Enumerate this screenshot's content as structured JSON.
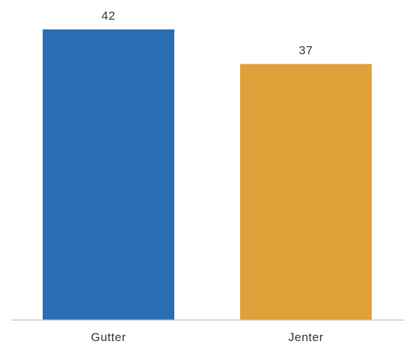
{
  "chart_data": {
    "type": "bar",
    "categories": [
      "Gutter",
      "Jenter"
    ],
    "values": [
      42,
      37
    ],
    "value_labels": [
      "42",
      "37"
    ],
    "colors": [
      "#2B6DB5",
      "#E0A039"
    ],
    "title": "",
    "xlabel": "",
    "ylabel": "",
    "ylim": [
      0,
      42
    ],
    "grid": false,
    "legend": "none"
  }
}
